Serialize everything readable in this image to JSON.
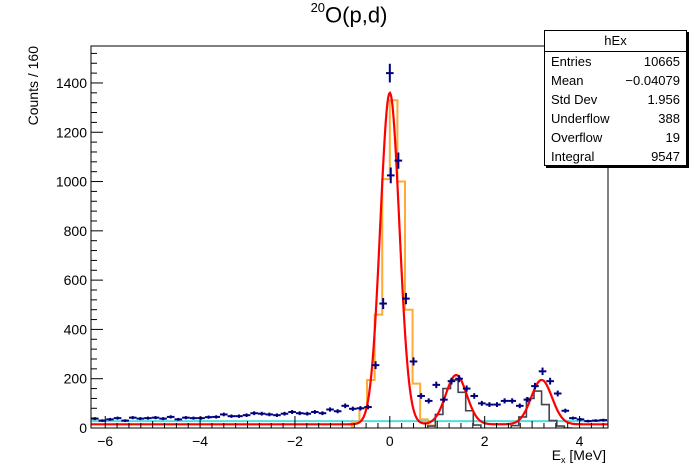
{
  "figure": {
    "title_sup": "20",
    "title_main": "O(p,d)"
  },
  "stats": {
    "title": "hEx",
    "rows": [
      {
        "key": "Entries",
        "value": "10665"
      },
      {
        "key": "Mean",
        "value": "−0.04079"
      },
      {
        "key": "Std Dev",
        "value": "1.956"
      },
      {
        "key": "Underflow",
        "value": "388"
      },
      {
        "key": "Overflow",
        "value": "19"
      },
      {
        "key": "Integral",
        "value": "9547"
      }
    ]
  },
  "colors": {
    "data": "#000080",
    "fit": "#ff0000",
    "gs_component": "#ffaa33",
    "excited_component": "#444455",
    "background": "#55dddd"
  },
  "chart_data": {
    "type": "line",
    "xlabel": "E_x [MeV]",
    "xlabel_main": "E",
    "xlabel_sub": "x",
    "xlabel_unit": " [MeV]",
    "ylabel": "Counts / 160",
    "xlim": [
      -6.3,
      4.6
    ],
    "ylim": [
      0,
      1550
    ],
    "x_ticks": [
      -6,
      -4,
      -2,
      0,
      2,
      4
    ],
    "y_ticks": [
      0,
      200,
      400,
      600,
      800,
      1000,
      1200,
      1400
    ],
    "bin_width": 0.16,
    "grid": false,
    "legend": "none",
    "series": [
      {
        "kind": "data_points",
        "points": [
          [
            -6.22,
            38
          ],
          [
            -6.06,
            30
          ],
          [
            -5.9,
            35
          ],
          [
            -5.74,
            40
          ],
          [
            -5.58,
            30
          ],
          [
            -5.42,
            42
          ],
          [
            -5.26,
            38
          ],
          [
            -5.1,
            40
          ],
          [
            -4.94,
            42
          ],
          [
            -4.78,
            38
          ],
          [
            -4.62,
            45
          ],
          [
            -4.46,
            35
          ],
          [
            -4.3,
            42
          ],
          [
            -4.14,
            40
          ],
          [
            -3.98,
            40
          ],
          [
            -3.82,
            44
          ],
          [
            -3.66,
            45
          ],
          [
            -3.5,
            55
          ],
          [
            -3.34,
            48
          ],
          [
            -3.18,
            48
          ],
          [
            -3.02,
            52
          ],
          [
            -2.86,
            60
          ],
          [
            -2.7,
            58
          ],
          [
            -2.54,
            55
          ],
          [
            -2.38,
            52
          ],
          [
            -2.22,
            58
          ],
          [
            -2.06,
            65
          ],
          [
            -1.9,
            60
          ],
          [
            -1.74,
            58
          ],
          [
            -1.58,
            65
          ],
          [
            -1.42,
            60
          ],
          [
            -1.26,
            75
          ],
          [
            -1.1,
            68
          ],
          [
            -0.94,
            90
          ],
          [
            -0.78,
            78
          ],
          [
            -0.62,
            80
          ],
          [
            -0.46,
            85
          ],
          [
            -0.3,
            255
          ],
          [
            -0.14,
            505
          ],
          [
            0.02,
            1025
          ],
          [
            0.0,
            1440
          ],
          [
            0.18,
            1085
          ],
          [
            0.34,
            525
          ],
          [
            0.5,
            270
          ],
          [
            0.66,
            130
          ],
          [
            0.82,
            110
          ],
          [
            0.98,
            175
          ],
          [
            1.14,
            115
          ],
          [
            1.3,
            190
          ],
          [
            1.46,
            200
          ],
          [
            1.62,
            160
          ],
          [
            1.78,
            130
          ],
          [
            1.94,
            100
          ],
          [
            2.1,
            95
          ],
          [
            2.26,
            95
          ],
          [
            2.42,
            110
          ],
          [
            2.58,
            110
          ],
          [
            2.74,
            90
          ],
          [
            2.9,
            115
          ],
          [
            3.06,
            170
          ],
          [
            3.22,
            230
          ],
          [
            3.38,
            190
          ],
          [
            3.54,
            140
          ],
          [
            3.7,
            70
          ],
          [
            3.86,
            40
          ],
          [
            4.02,
            35
          ],
          [
            4.18,
            28
          ],
          [
            4.34,
            30
          ],
          [
            4.5,
            32
          ]
        ]
      },
      {
        "kind": "fit_curve",
        "constant": 15,
        "peaks": [
          {
            "mu": 0.0,
            "sigma": 0.2,
            "amp": 1345
          },
          {
            "mu": 1.4,
            "sigma": 0.22,
            "amp": 200
          },
          {
            "mu": 3.2,
            "sigma": 0.22,
            "amp": 180
          }
        ]
      },
      {
        "kind": "component_histogram",
        "x_edges": [
          -0.8,
          -0.64,
          -0.48,
          -0.32,
          -0.16,
          0.0,
          0.16,
          0.32,
          0.48,
          0.64,
          0.8,
          0.96
        ],
        "values": [
          25,
          80,
          195,
          460,
          1010,
          1330,
          1000,
          480,
          180,
          35,
          10
        ]
      },
      {
        "kind": "component_histogram",
        "x_edges": [
          0.8,
          0.96,
          1.12,
          1.28,
          1.44,
          1.6,
          1.76,
          1.92,
          2.56,
          2.72,
          2.88,
          3.04,
          3.2,
          3.36,
          3.52,
          3.68,
          3.84
        ],
        "values": [
          8,
          55,
          160,
          195,
          145,
          70,
          12,
          0,
          10,
          45,
          120,
          150,
          95,
          30,
          8,
          0
        ],
        "gap_after_index": 7
      },
      {
        "kind": "constant_line",
        "value": 28
      }
    ]
  }
}
